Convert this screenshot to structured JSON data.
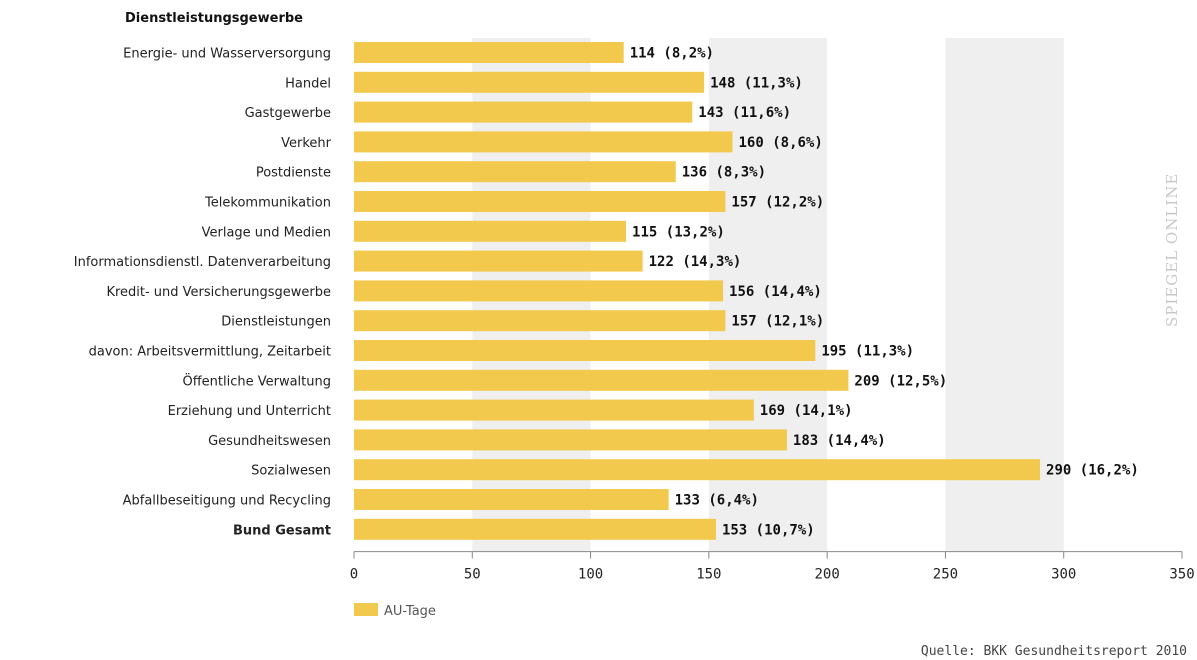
{
  "chart_data": {
    "type": "bar",
    "orientation": "horizontal",
    "group_header": "Dienstleistungsgewerbe",
    "categories": [
      "Energie- und Wasserversorgung",
      "Handel",
      "Gastgewerbe",
      "Verkehr",
      "Postdienste",
      "Telekommunikation",
      "Verlage und Medien",
      "Informationsdienstl. Datenverarbeitung",
      "Kredit- und Versicherungsgewerbe",
      "Dienstleistungen",
      "davon: Arbeitsvermittlung, Zeitarbeit",
      "Öffentliche Verwaltung",
      "Erziehung und Unterricht",
      "Gesundheitswesen",
      "Sozialwesen",
      "Abfallbeseitigung und Recycling",
      "Bund Gesamt"
    ],
    "bold_categories": [
      "Bund Gesamt"
    ],
    "series": [
      {
        "name": "AU-Tage",
        "values": [
          114,
          148,
          143,
          160,
          136,
          157,
          115,
          122,
          156,
          157,
          195,
          209,
          169,
          183,
          290,
          133,
          153
        ]
      }
    ],
    "value_labels": [
      "114 (8,2%)",
      "148 (11,3%)",
      "143 (11,6%)",
      "160 (8,6%)",
      "136 (8,3%)",
      "157 (12,2%)",
      "115 (13,2%)",
      "122 (14,3%)",
      "156 (14,4%)",
      "157 (12,1%)",
      "195 (11,3%)",
      "209 (12,5%)",
      "169 (14,1%)",
      "183 (14,4%)",
      "290 (16,2%)",
      "133 (6,4%)",
      "153 (10,7%)"
    ],
    "xlim": [
      0,
      350
    ],
    "xticks": [
      0,
      50,
      100,
      150,
      200,
      250,
      300,
      350
    ],
    "alternating_bands": true,
    "legend_position": "bottom-left",
    "bar_color": "#f2c94c",
    "band_color": "#efefef"
  },
  "source": "Quelle: BKK Gesundheitsreport 2010",
  "watermark": "SPIEGEL ONLINE"
}
